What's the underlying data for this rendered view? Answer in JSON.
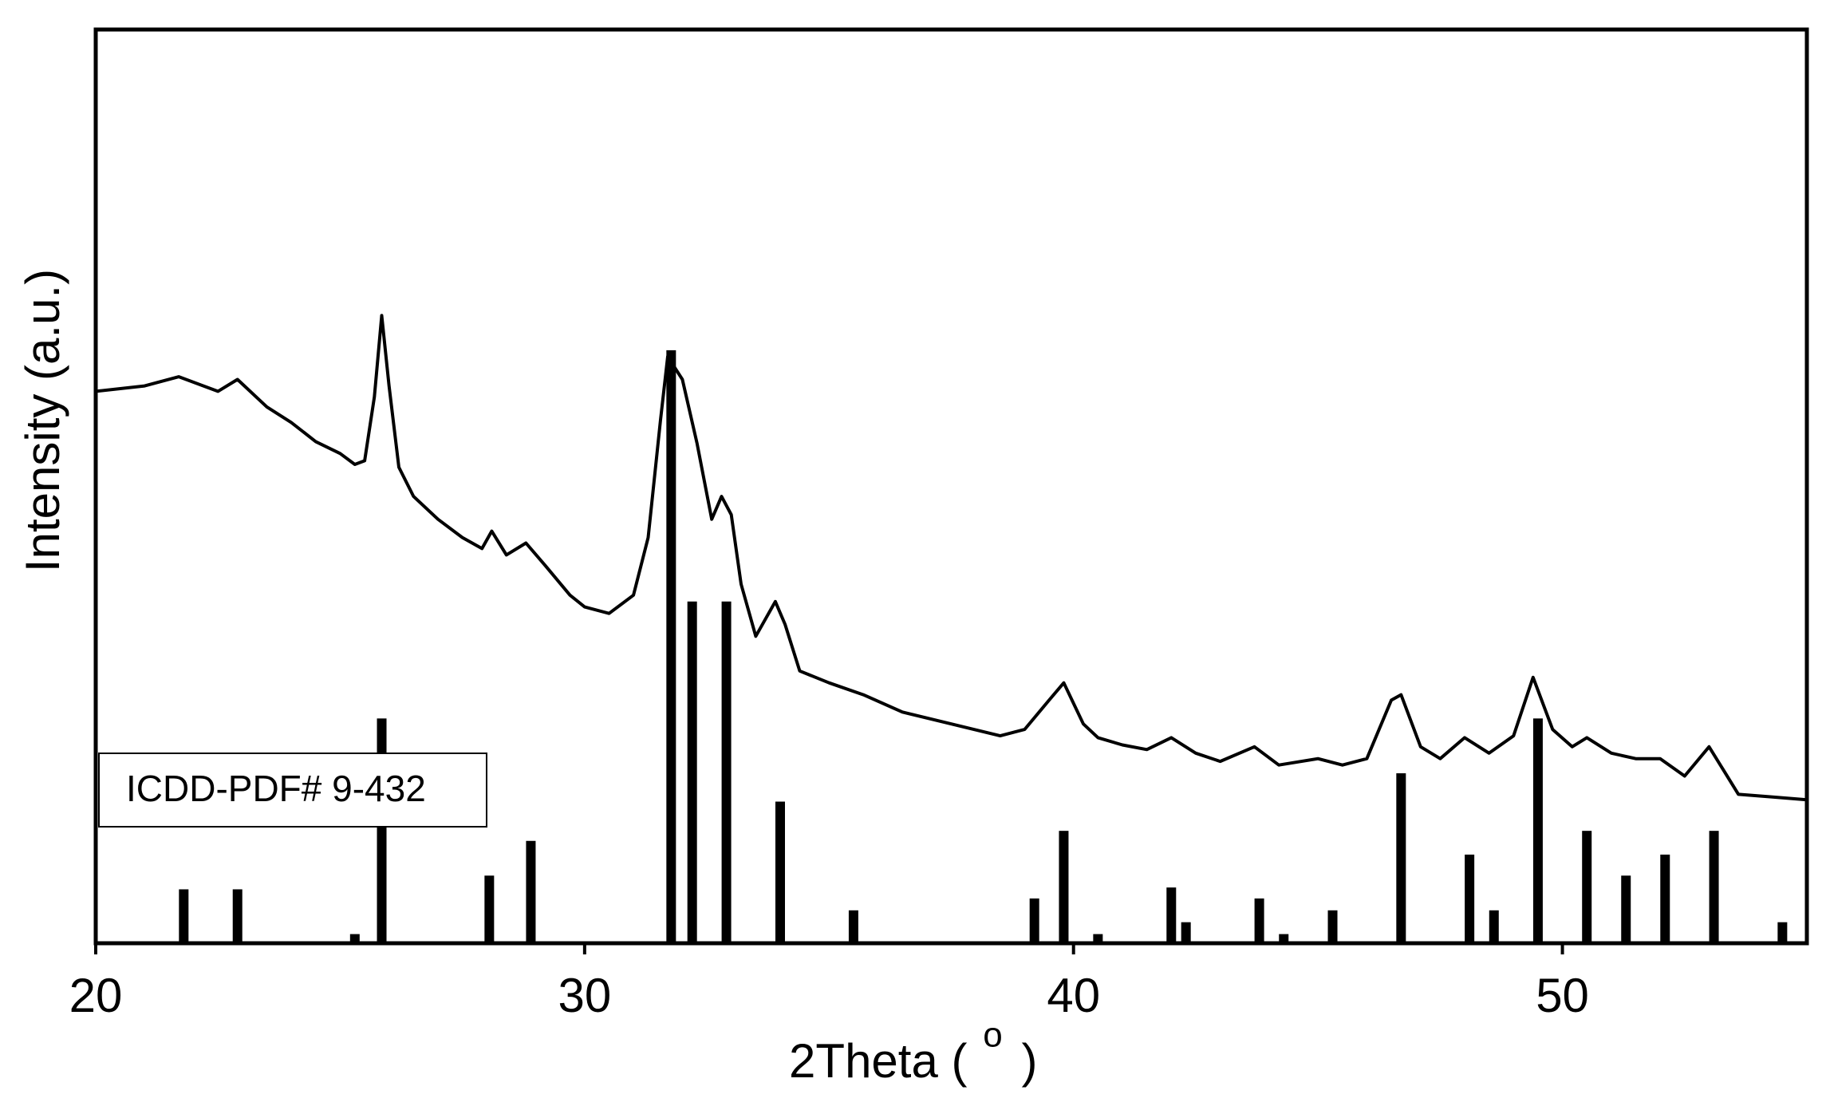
{
  "chart_data": {
    "type": "line",
    "ylabel": "Intensity (a.u.)",
    "xlabel": {
      "text": "2Theta (",
      "superscript": "o",
      "close": ")"
    },
    "xlim": [
      20,
      55
    ],
    "xticks": [
      20,
      30,
      40,
      50
    ],
    "ylim": [
      0,
      100
    ],
    "series": [
      {
        "type": "line",
        "color": "#000000",
        "x": [
          20,
          21,
          21.7,
          22.5,
          22.9,
          23.5,
          24,
          24.5,
          25,
          25.3,
          25.5,
          25.7,
          25.85,
          26,
          26.2,
          26.5,
          27,
          27.5,
          27.9,
          28.1,
          28.4,
          28.8,
          29.2,
          29.7,
          30,
          30.5,
          31,
          31.3,
          31.55,
          31.7,
          32,
          32.3,
          32.6,
          32.8,
          33,
          33.2,
          33.5,
          33.9,
          34.1,
          34.4,
          35,
          35.7,
          36.5,
          37.5,
          38.5,
          39,
          39.5,
          39.8,
          40.2,
          40.5,
          41,
          41.5,
          42,
          42.5,
          43,
          43.7,
          44.2,
          45,
          45.5,
          46,
          46.5,
          46.7,
          47.1,
          47.5,
          48,
          48.5,
          49,
          49.4,
          49.8,
          50.2,
          50.5,
          51,
          51.5,
          52,
          52.5,
          53,
          53.3,
          53.6,
          54.3,
          55
        ],
        "values": [
          60.4,
          61,
          62,
          60.4,
          61.7,
          58.7,
          57,
          54.9,
          53.6,
          52.4,
          52.8,
          59.8,
          68.7,
          61,
          52.1,
          48.9,
          46.4,
          44.4,
          43.2,
          45.1,
          42.5,
          43.8,
          41.3,
          38.1,
          36.8,
          36.1,
          38.1,
          44.4,
          57.2,
          64.2,
          61.7,
          54.7,
          46.4,
          48.9,
          46.9,
          39.3,
          33.6,
          37.4,
          34.9,
          29.8,
          28.5,
          27.2,
          25.3,
          24,
          22.7,
          23.4,
          26.6,
          28.5,
          24,
          22.5,
          21.7,
          21.2,
          22.5,
          20.8,
          19.9,
          21.5,
          19.5,
          20.2,
          19.5,
          20.2,
          26.6,
          27.2,
          21.5,
          20.2,
          22.5,
          20.8,
          22.7,
          29.1,
          23.4,
          21.5,
          22.5,
          20.8,
          20.2,
          20.2,
          18.3,
          21.5,
          18.9,
          16.3,
          16,
          15.7
        ]
      },
      {
        "type": "bar",
        "name": "ICDD-PDF# 9-432",
        "color": "#000000",
        "x": [
          21.8,
          22.9,
          25.3,
          25.85,
          28.05,
          28.9,
          31.77,
          32.2,
          32.9,
          34.0,
          35.5,
          39.2,
          39.8,
          40.5,
          42.0,
          42.3,
          43.8,
          44.3,
          45.3,
          46.7,
          48.1,
          48.6,
          49.5,
          50.5,
          51.3,
          52.1,
          53.1,
          54.5
        ],
        "values": [
          5.9,
          5.9,
          1,
          24.6,
          7.4,
          11.2,
          64.9,
          37.4,
          37.4,
          15.5,
          3.6,
          4.9,
          12.3,
          1,
          6.1,
          2.3,
          4.9,
          1,
          3.6,
          18.6,
          9.7,
          3.6,
          24.6,
          12.3,
          7.4,
          9.7,
          12.3,
          2.3
        ]
      }
    ]
  }
}
